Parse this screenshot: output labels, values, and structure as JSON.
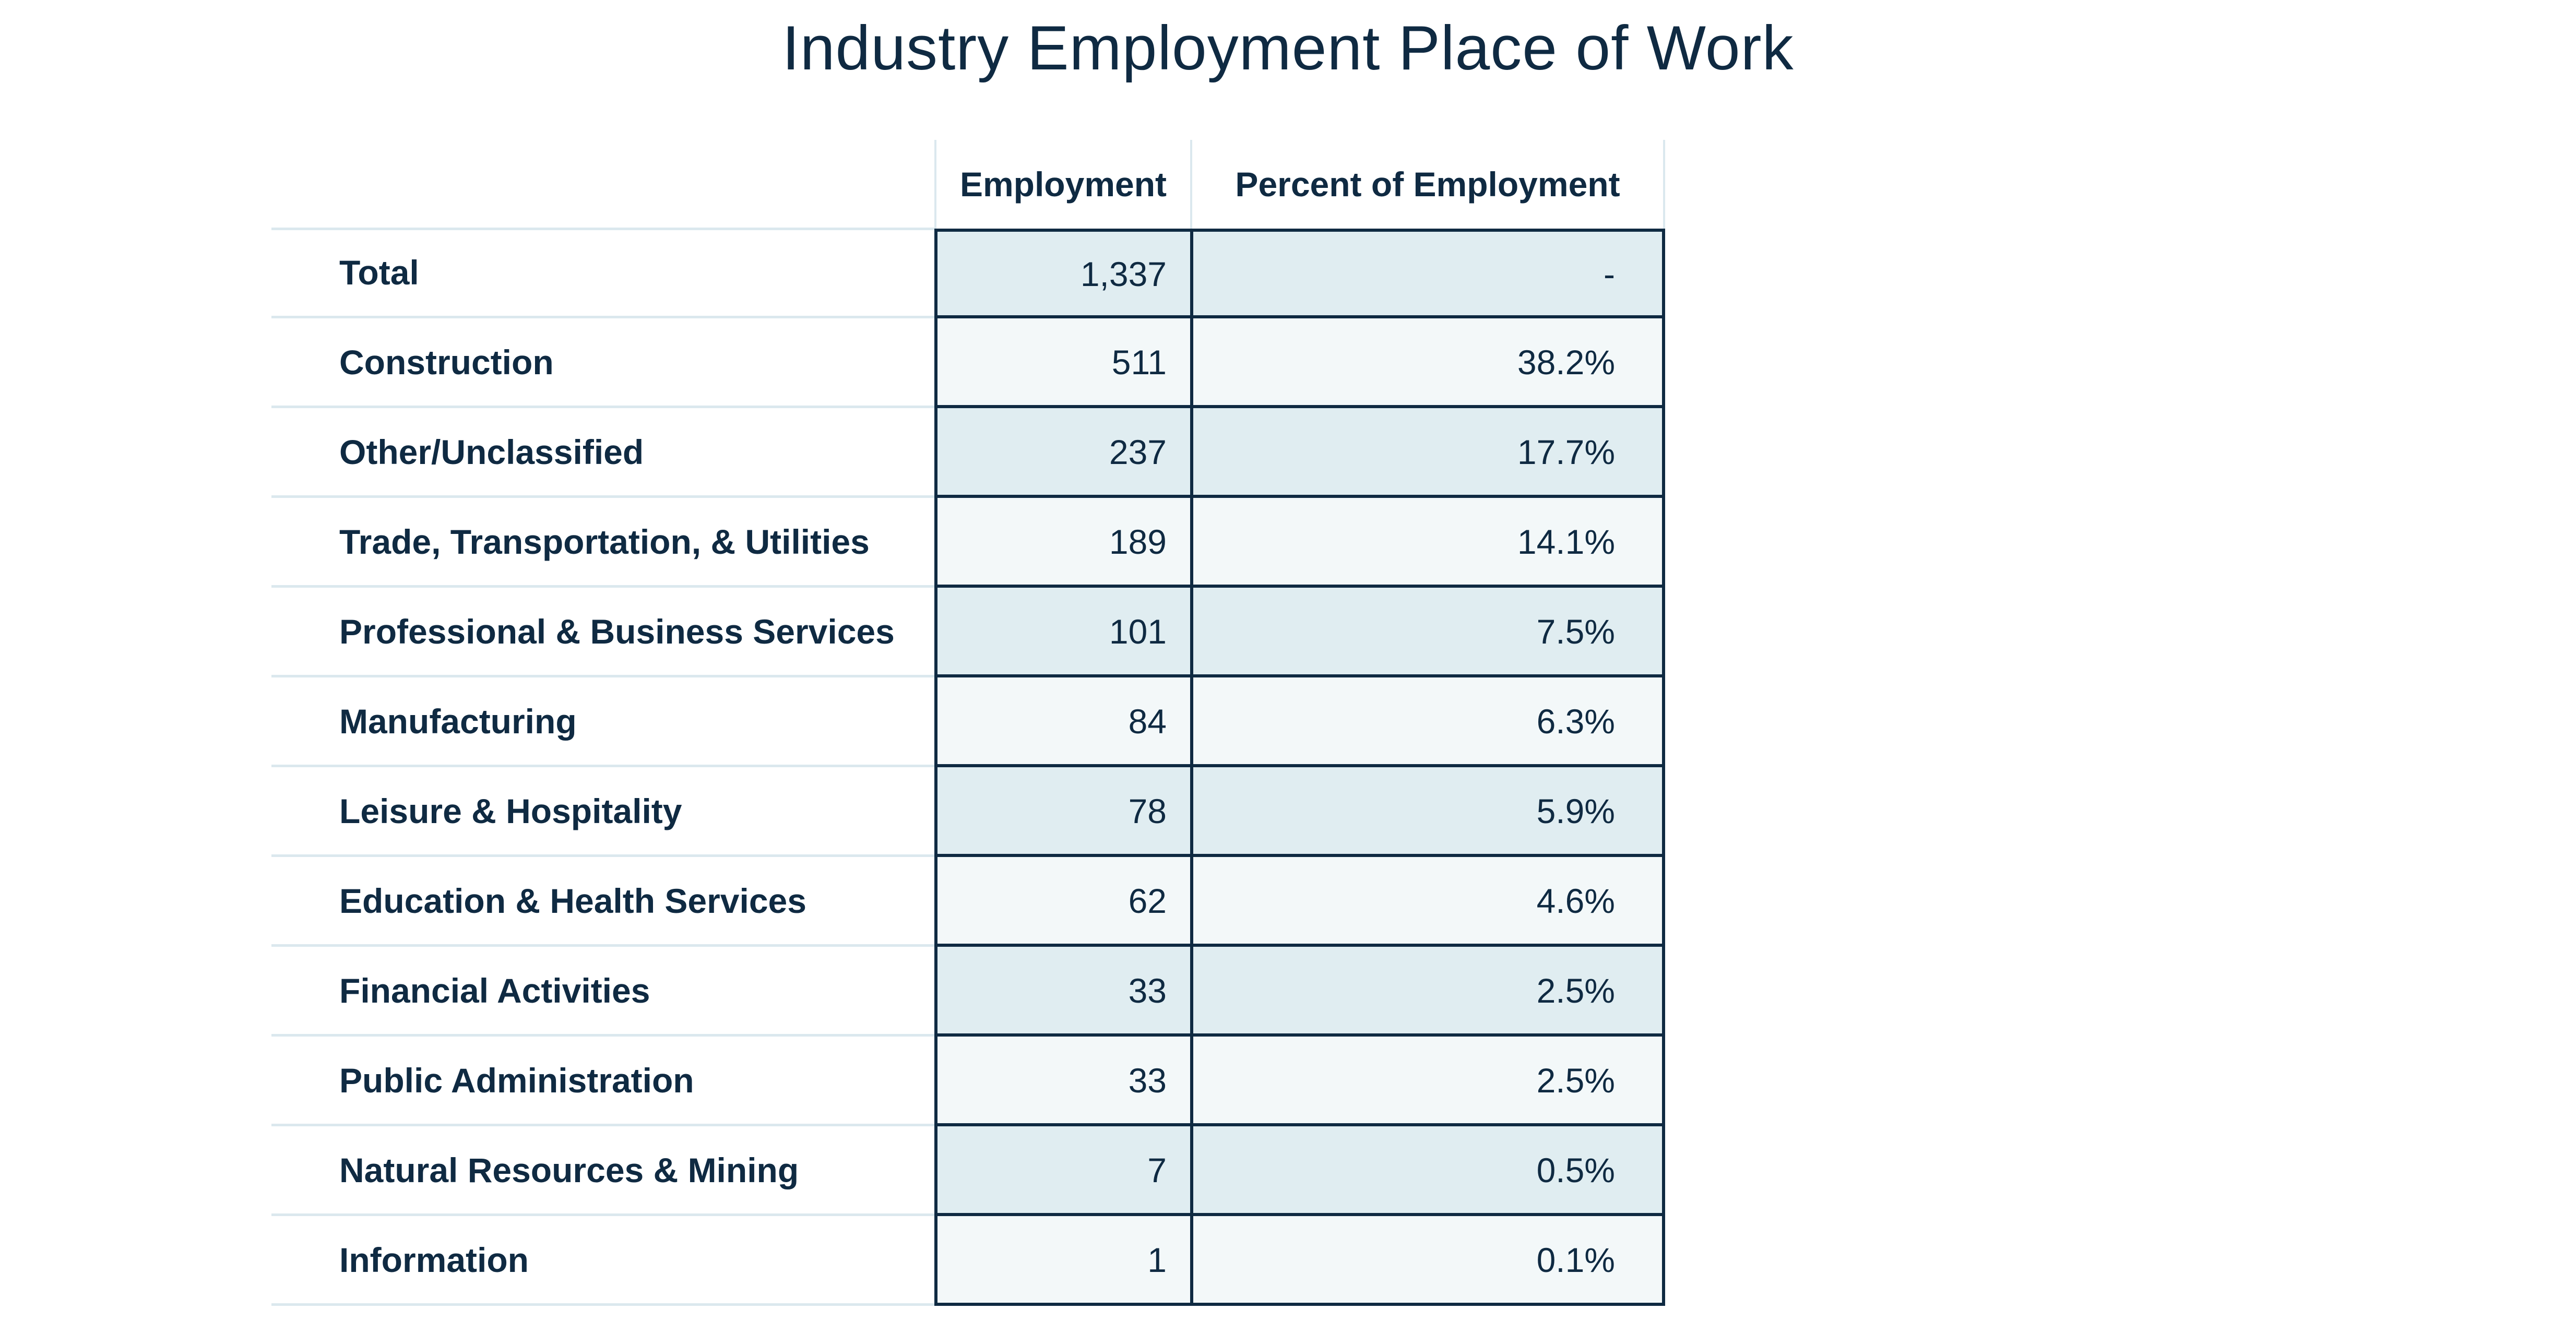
{
  "chart_data": {
    "type": "table",
    "title": "Industry Employment Place of Work",
    "columns": [
      "",
      "Employment",
      "Percent of Employment"
    ],
    "rows": [
      {
        "industry": "Total",
        "employment": "1,337",
        "percent": "-"
      },
      {
        "industry": "Construction",
        "employment": "511",
        "percent": "38.2%"
      },
      {
        "industry": "Other/Unclassified",
        "employment": "237",
        "percent": "17.7%"
      },
      {
        "industry": "Trade, Transportation, & Utilities",
        "employment": "189",
        "percent": "14.1%"
      },
      {
        "industry": "Professional & Business Services",
        "employment": "101",
        "percent": "7.5%"
      },
      {
        "industry": "Manufacturing",
        "employment": "84",
        "percent": "6.3%"
      },
      {
        "industry": "Leisure & Hospitality",
        "employment": "78",
        "percent": "5.9%"
      },
      {
        "industry": "Education & Health Services",
        "employment": "62",
        "percent": "4.6%"
      },
      {
        "industry": "Financial Activities",
        "employment": "33",
        "percent": "2.5%"
      },
      {
        "industry": "Public Administration",
        "employment": "33",
        "percent": "2.5%"
      },
      {
        "industry": "Natural Resources & Mining",
        "employment": "7",
        "percent": "0.5%"
      },
      {
        "industry": "Information",
        "employment": "1",
        "percent": "0.1%"
      }
    ]
  },
  "colors": {
    "text": "#0f2a42",
    "shade_row": "#e0edf1",
    "light_row": "#f3f8f9",
    "grid_light": "#dbe8ee",
    "border_dark": "#0f2a42"
  }
}
